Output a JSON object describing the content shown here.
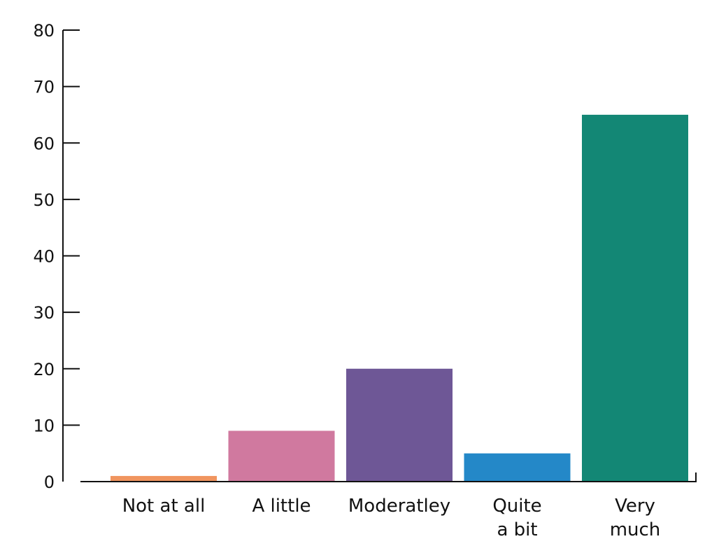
{
  "chart_data": {
    "type": "bar",
    "categories": [
      "Not at all",
      "A little",
      "Moderatley",
      "Quite a bit",
      "Very much"
    ],
    "category_lines": [
      [
        "Not at all"
      ],
      [
        "A little"
      ],
      [
        "Moderatley"
      ],
      [
        "Quite",
        "a bit"
      ],
      [
        "Very",
        "much"
      ]
    ],
    "values": [
      1,
      9,
      20,
      5,
      65
    ],
    "colors": [
      "#f0955f",
      "#d0799f",
      "#6e5796",
      "#2488c8",
      "#138775"
    ],
    "yticks": [
      "0",
      "10",
      "20",
      "30",
      "40",
      "50",
      "60",
      "70",
      "80"
    ],
    "ylim": [
      0,
      80
    ],
    "grid": false,
    "title": "",
    "xlabel": "",
    "ylabel": ""
  }
}
